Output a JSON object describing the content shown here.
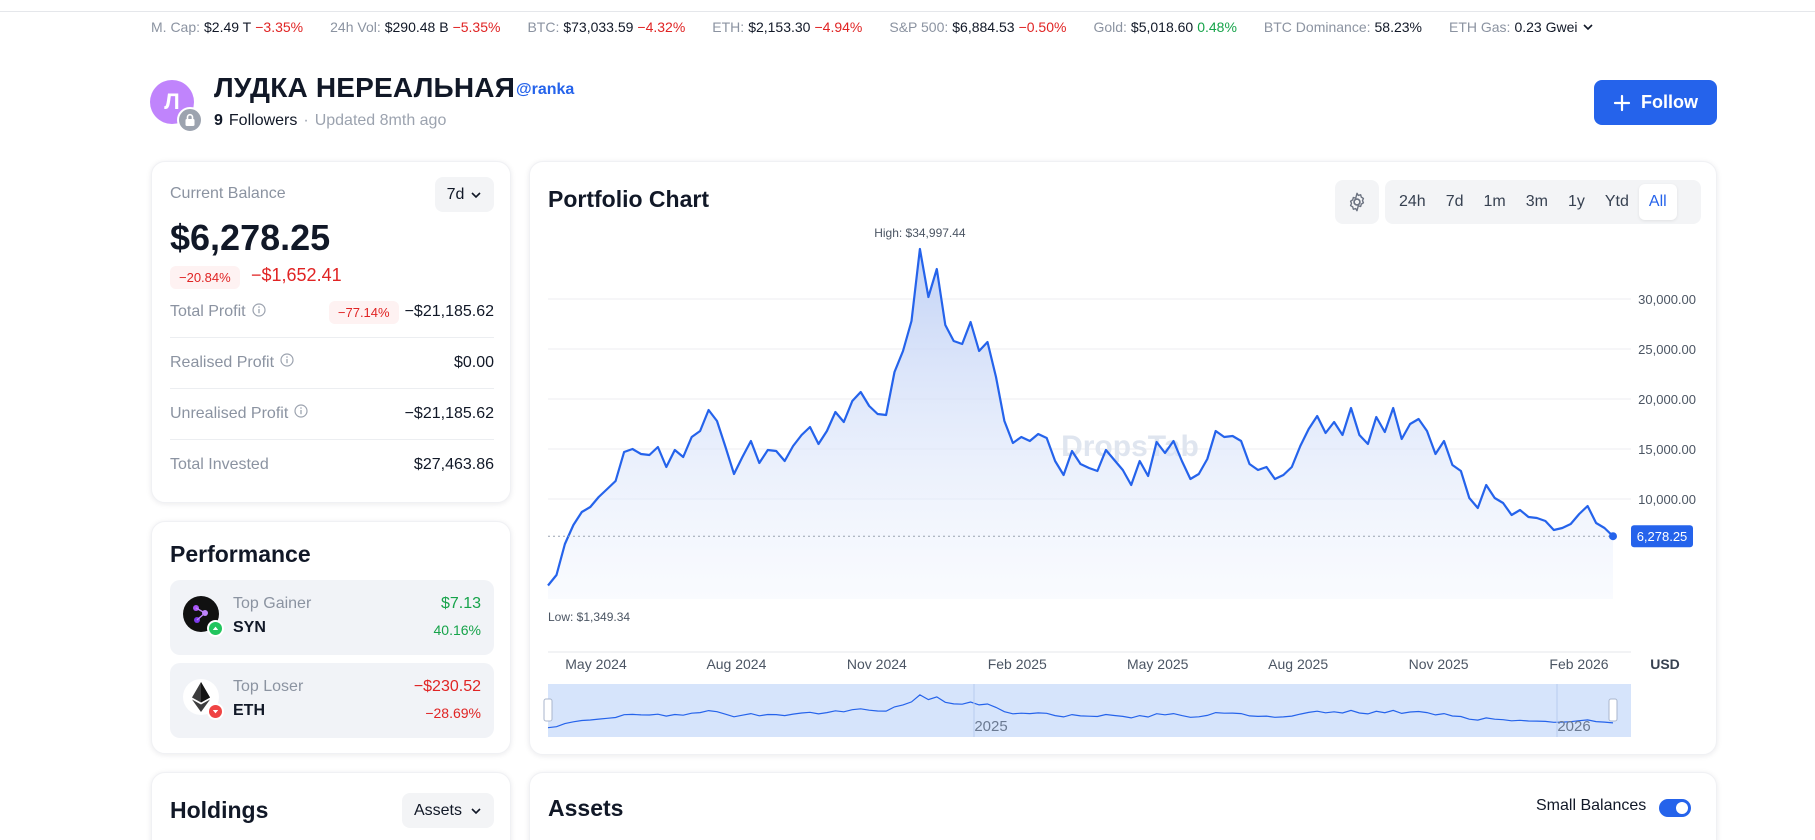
{
  "ticker": [
    {
      "label": "M. Cap:",
      "value": "$2.49 T",
      "change": "−3.35%",
      "dir": "neg"
    },
    {
      "label": "24h Vol:",
      "value": "$290.48 B",
      "change": "−5.35%",
      "dir": "neg"
    },
    {
      "label": "BTC:",
      "value": "$73,033.59",
      "change": "−4.32%",
      "dir": "neg"
    },
    {
      "label": "ETH:",
      "value": "$2,153.30",
      "change": "−4.94%",
      "dir": "neg"
    },
    {
      "label": "S&P 500:",
      "value": "$6,884.53",
      "change": "−0.50%",
      "dir": "neg"
    },
    {
      "label": "Gold:",
      "value": "$5,018.60",
      "change": "0.48%",
      "dir": "pos"
    },
    {
      "label": "BTC Dominance:",
      "value": "58.23%",
      "change": "",
      "dir": ""
    },
    {
      "label": "ETH Gas:",
      "value": "0.23 Gwei",
      "change": "",
      "dir": ""
    }
  ],
  "profile": {
    "avatar_letter": "Л",
    "name": "ЛУДКА НЕРЕАЛЬНАЯ",
    "handle": "@ranka",
    "followers_count": "9",
    "followers_label": "Followers",
    "updated": "Updated 8mth ago",
    "follow_label": "Follow"
  },
  "balance": {
    "label": "Current Balance",
    "period": "7d",
    "value": "$6,278.25",
    "change_pct": "−20.84%",
    "change_abs": "−$1,652.41",
    "rows": [
      {
        "label": "Total Profit",
        "pct": "−77.14%",
        "value": "−$21,185.62",
        "tone": "neg",
        "info": true
      },
      {
        "label": "Realised Profit",
        "pct": "",
        "value": "$0.00",
        "tone": "",
        "info": true
      },
      {
        "label": "Unrealised Profit",
        "pct": "",
        "value": "−$21,185.62",
        "tone": "neg",
        "info": true
      },
      {
        "label": "Total Invested",
        "pct": "",
        "value": "$27,463.86",
        "tone": "",
        "info": false
      }
    ]
  },
  "performance": {
    "title": "Performance",
    "gainer": {
      "label": "Top Gainer",
      "symbol": "SYN",
      "value": "$7.13",
      "pct": "40.16%"
    },
    "loser": {
      "label": "Top Loser",
      "symbol": "ETH",
      "value": "−$230.52",
      "pct": "−28.69%"
    }
  },
  "holdings": {
    "title": "Holdings",
    "select": "Assets"
  },
  "assets": {
    "title": "Assets",
    "small_balances": "Small Balances",
    "small_balances_on": true
  },
  "chart": {
    "title": "Portfolio Chart",
    "ranges": [
      "24h",
      "7d",
      "1m",
      "3m",
      "1y",
      "Ytd",
      "All"
    ],
    "active_range": "All",
    "accent": "#2563eb",
    "watermark": "DropsTab",
    "currency": "USD",
    "navigator_years": [
      "2025",
      "2026"
    ]
  },
  "chart_data": {
    "type": "area",
    "title": "Portfolio Chart",
    "xlabel": "",
    "ylabel": "USD",
    "x_ticks": [
      "May 2024",
      "Aug 2024",
      "Nov 2024",
      "Feb 2025",
      "May 2025",
      "Aug 2025",
      "Nov 2025",
      "Feb 2026"
    ],
    "y_ticks": [
      "10,000.00",
      "15,000.00",
      "20,000.00",
      "25,000.00",
      "30,000.00"
    ],
    "ylim": [
      0,
      38000
    ],
    "high_label": "High: $34,997.44",
    "low_label": "Low: $1,349.34",
    "current_label": "6,278.25",
    "current_value": 6278.25,
    "series": [
      {
        "values": [
          1349,
          2400,
          5500,
          7400,
          8700,
          9200,
          10200,
          11000,
          11800,
          14700,
          15000,
          14500,
          14400,
          15200,
          13200,
          14900,
          14200,
          16200,
          16800,
          18900,
          17800,
          15200,
          12500,
          14200,
          15800,
          13600,
          14900,
          14800,
          13800,
          15300,
          16400,
          17200,
          15500,
          16800,
          18700,
          17700,
          19800,
          20700,
          19300,
          18500,
          18400,
          22700,
          24800,
          27800,
          34997,
          30200,
          33000,
          27400,
          25800,
          25500,
          27700,
          24800,
          25700,
          22200,
          17800,
          15600,
          16200,
          15800,
          16500,
          16100,
          13800,
          12400,
          14800,
          13500,
          13100,
          12800,
          14900,
          13900,
          12900,
          11400,
          13800,
          12300,
          15700,
          14600,
          15800,
          13800,
          12000,
          12500,
          14000,
          16800,
          16200,
          16300,
          15800,
          13500,
          12900,
          13200,
          12000,
          12400,
          13200,
          15300,
          17000,
          18300,
          16600,
          17700,
          16400,
          19100,
          16400,
          15500,
          18200,
          16700,
          19100,
          16000,
          17500,
          18000,
          16800,
          14500,
          15800,
          13400,
          12800,
          10100,
          9100,
          11400,
          10100,
          9600,
          8400,
          8900,
          8200,
          8100,
          7800,
          6900,
          7100,
          7500,
          8500,
          9300,
          7600,
          7100,
          6278
        ]
      }
    ]
  }
}
